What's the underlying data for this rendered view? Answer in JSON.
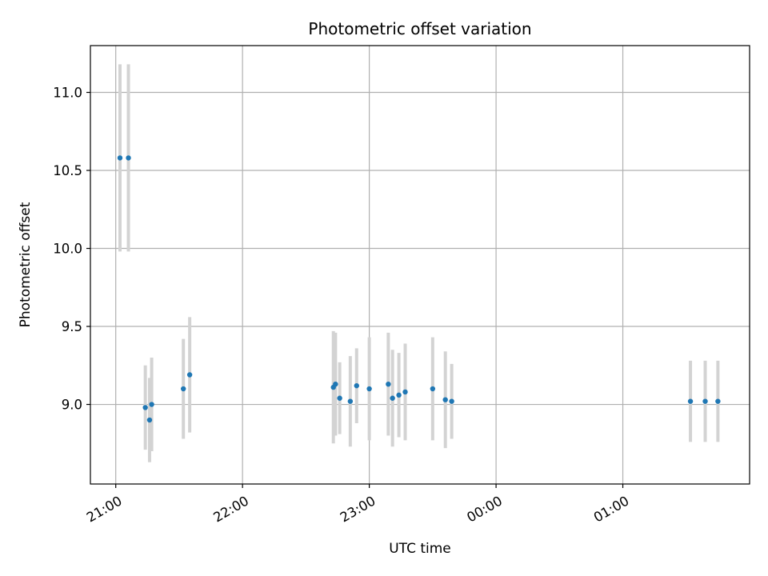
{
  "chart_data": {
    "type": "scatter",
    "title": "Photometric offset variation",
    "xlabel": "UTC time",
    "ylabel": "Photometric offset",
    "x_is_time": true,
    "xlim": [
      "20:48",
      "02:00"
    ],
    "ylim": [
      8.49,
      11.3
    ],
    "x_ticks": [
      "21:00",
      "22:00",
      "23:00",
      "00:00",
      "01:00"
    ],
    "y_ticks": [
      9.0,
      9.5,
      10.0,
      10.5,
      11.0
    ],
    "grid": true,
    "point_color": "#1f77b4",
    "errorbar_color": "#d3d3d3",
    "series": [
      {
        "points": [
          {
            "time": "21:02",
            "y": 10.58,
            "err": 0.6
          },
          {
            "time": "21:06",
            "y": 10.58,
            "err": 0.6
          },
          {
            "time": "21:14",
            "y": 8.98,
            "err": 0.27
          },
          {
            "time": "21:16",
            "y": 8.9,
            "err": 0.27
          },
          {
            "time": "21:17",
            "y": 9.0,
            "err": 0.3
          },
          {
            "time": "21:32",
            "y": 9.1,
            "err": 0.32
          },
          {
            "time": "21:35",
            "y": 9.19,
            "err": 0.37
          },
          {
            "time": "22:43",
            "y": 9.11,
            "err": 0.36
          },
          {
            "time": "22:44",
            "y": 9.13,
            "err": 0.33
          },
          {
            "time": "22:46",
            "y": 9.04,
            "err": 0.23
          },
          {
            "time": "22:51",
            "y": 9.02,
            "err": 0.29
          },
          {
            "time": "22:54",
            "y": 9.12,
            "err": 0.24
          },
          {
            "time": "23:00",
            "y": 9.1,
            "err": 0.33
          },
          {
            "time": "23:09",
            "y": 9.13,
            "err": 0.33
          },
          {
            "time": "23:11",
            "y": 9.04,
            "err": 0.31
          },
          {
            "time": "23:14",
            "y": 9.06,
            "err": 0.27
          },
          {
            "time": "23:17",
            "y": 9.08,
            "err": 0.31
          },
          {
            "time": "23:30",
            "y": 9.1,
            "err": 0.33
          },
          {
            "time": "23:36",
            "y": 9.03,
            "err": 0.31
          },
          {
            "time": "23:39",
            "y": 9.02,
            "err": 0.24
          },
          {
            "time": "01:32",
            "y": 9.02,
            "err": 0.26
          },
          {
            "time": "01:39",
            "y": 9.02,
            "err": 0.26
          },
          {
            "time": "01:45",
            "y": 9.02,
            "err": 0.26
          }
        ]
      }
    ]
  }
}
